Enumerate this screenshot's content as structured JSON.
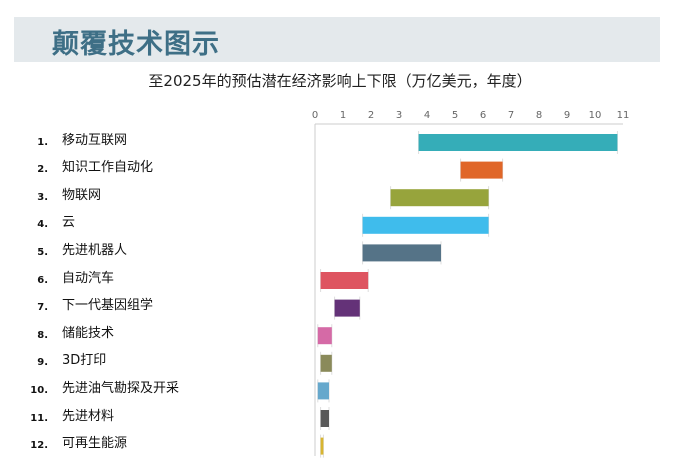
{
  "header": {
    "title": "颠覆技术图示"
  },
  "chart_data": {
    "type": "bar",
    "orientation": "horizontal-range",
    "title": "至2025年的预估潜在经济影响上下限（万亿美元，年度）",
    "xlim": [
      0,
      11
    ],
    "x_ticks": [
      0,
      1,
      2,
      3,
      4,
      5,
      6,
      7,
      8,
      9,
      10,
      11
    ],
    "grid": false,
    "categories": [
      "移动互联网",
      "知识工作自动化",
      "物联网",
      "云",
      "先进机器人",
      "自动汽车",
      "下一代基因组学",
      "储能技术",
      "3D打印",
      "先进油气勘探及开采",
      "先进材料",
      "可再生能源"
    ],
    "numbers": [
      "1.",
      "2.",
      "3.",
      "4.",
      "5.",
      "6.",
      "7.",
      "8.",
      "9.",
      "10.",
      "11.",
      "12."
    ],
    "low": [
      3.7,
      5.2,
      2.7,
      1.7,
      1.7,
      0.2,
      0.7,
      0.1,
      0.2,
      0.1,
      0.2,
      0.2
    ],
    "high": [
      10.8,
      6.7,
      6.2,
      6.2,
      4.5,
      1.9,
      1.6,
      0.6,
      0.6,
      0.5,
      0.5,
      0.3
    ],
    "colors": [
      "#35adb8",
      "#e06628",
      "#97a43c",
      "#3fbcec",
      "#557387",
      "#de5460",
      "#643278",
      "#d56aa6",
      "#8a8a5a",
      "#66a8cc",
      "#575757",
      "#d8b530"
    ]
  }
}
